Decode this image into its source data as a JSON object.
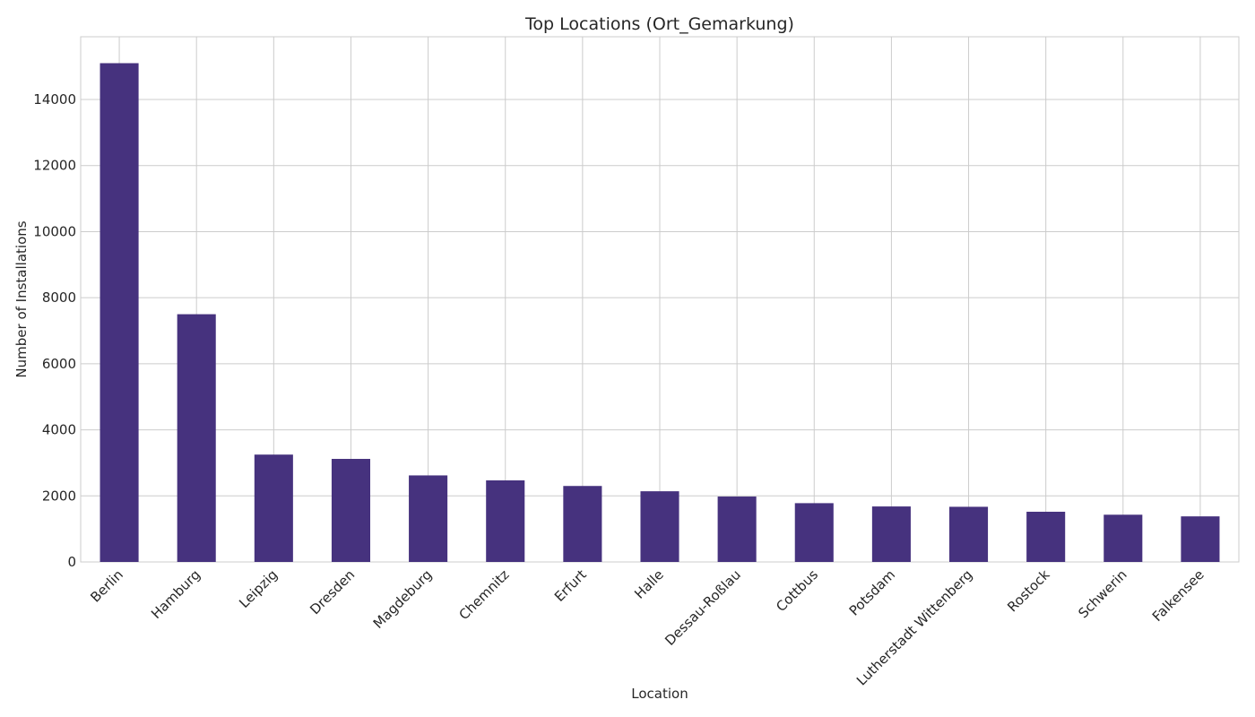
{
  "chart_data": {
    "type": "bar",
    "title": "Top Locations (Ort_Gemarkung)",
    "xlabel": "Location",
    "ylabel": "Number of Installations",
    "categories": [
      "Berlin",
      "Hamburg",
      "Leipzig",
      "Dresden",
      "Magdeburg",
      "Chemnitz",
      "Erfurt",
      "Halle",
      "Dessau-Roßlau",
      "Cottbus",
      "Potsdam",
      "Lutherstadt Wittenberg",
      "Rostock",
      "Schwerin",
      "Falkensee"
    ],
    "values": [
      15100,
      7500,
      3250,
      3120,
      2620,
      2470,
      2300,
      2140,
      1980,
      1780,
      1680,
      1670,
      1520,
      1430,
      1380
    ],
    "ylim": [
      0,
      15900
    ],
    "yticks": [
      0,
      2000,
      4000,
      6000,
      8000,
      10000,
      12000,
      14000
    ],
    "grid": true,
    "bar_color": "#46327e",
    "legend": "none"
  }
}
